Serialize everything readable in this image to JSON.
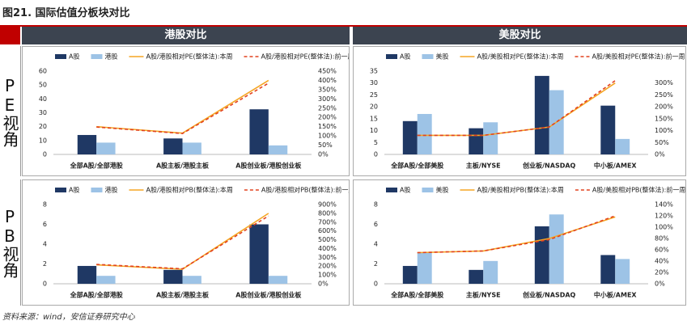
{
  "title": "图21. 国际估值分板块对比",
  "columns": [
    "港股对比",
    "美股对比"
  ],
  "rows": [
    "PE视角",
    "PB视角"
  ],
  "source": "资料来源：wind，安信证券研究中心",
  "chart_data": [
    {
      "type": "bar",
      "categories": [
        "全部A股/全部港股",
        "A股主板/港股主板",
        "A股创业板/港股创业板"
      ],
      "series": [
        {
          "name": "A股",
          "color": "#1f3864",
          "values": [
            14,
            11.5,
            32.5
          ]
        },
        {
          "name": "港股",
          "color": "#9dc3e6",
          "values": [
            8.5,
            8.5,
            6.5
          ]
        },
        {
          "name": "A股/港股相对PE(整体法):本周",
          "color": "#f5a623",
          "axis": "y2",
          "values": [
            150,
            115,
            400
          ]
        },
        {
          "name": "A股/港股相对PE(整体法):前一周",
          "color": "#e2421f",
          "axis": "y2",
          "style": "dashed",
          "values": [
            148,
            113,
            385
          ]
        }
      ],
      "ylim": [
        0,
        60
      ],
      "yticks": [
        0,
        10,
        20,
        30,
        40,
        50,
        60
      ],
      "y2lim": [
        0,
        450
      ],
      "y2ticks": [
        {
          "value": 0,
          "label": "0%"
        },
        {
          "value": 50,
          "label": "50%"
        },
        {
          "value": 100,
          "label": "100%"
        },
        {
          "value": 150,
          "label": "150%"
        },
        {
          "value": 200,
          "label": "200%"
        },
        {
          "value": 250,
          "label": "250%"
        },
        {
          "value": 300,
          "label": "300%"
        },
        {
          "value": 350,
          "label": "350%"
        },
        {
          "value": 400,
          "label": "400%"
        },
        {
          "value": 450,
          "label": "450%"
        }
      ],
      "grid": false
    },
    {
      "type": "bar",
      "categories": [
        "全部A股/全部美股",
        "主板/NYSE",
        "创业板/NASDAQ",
        "中小板/AMEX"
      ],
      "series": [
        {
          "name": "A股",
          "color": "#1f3864",
          "values": [
            14,
            11,
            33,
            20.5
          ]
        },
        {
          "name": "美股",
          "color": "#9dc3e6",
          "values": [
            17,
            13.5,
            27,
            6.5
          ]
        },
        {
          "name": "A股/美股相对PE(整体法):本周",
          "color": "#f5a623",
          "axis": "y2",
          "values": [
            80,
            80,
            115,
            300
          ]
        },
        {
          "name": "A股/美股相对PE(整体法):前一周",
          "color": "#e2421f",
          "axis": "y2",
          "style": "dashed",
          "values": [
            80,
            80,
            115,
            310
          ]
        }
      ],
      "ylim": [
        0,
        35
      ],
      "yticks": [
        0,
        5,
        10,
        15,
        20,
        25,
        30,
        35
      ],
      "y2lim": [
        0,
        350
      ],
      "y2ticks": [
        {
          "value": 0,
          "label": "0%"
        },
        {
          "value": 50,
          "label": "50%"
        },
        {
          "value": 100,
          "label": "100%"
        },
        {
          "value": 150,
          "label": "150%"
        },
        {
          "value": 200,
          "label": "200%"
        },
        {
          "value": 250,
          "label": "250%"
        },
        {
          "value": 300,
          "label": "300%"
        }
      ],
      "grid": false
    },
    {
      "type": "bar",
      "categories": [
        "全部A股/全部港股",
        "A股主板/港股主板",
        "A股创业板/港股创业板"
      ],
      "series": [
        {
          "name": "A股",
          "color": "#1f3864",
          "values": [
            1.8,
            1.4,
            6
          ]
        },
        {
          "name": "港股",
          "color": "#9dc3e6",
          "values": [
            0.8,
            0.8,
            0.8
          ]
        },
        {
          "name": "A股/港股相对PB(整体法):本周",
          "color": "#f5a623",
          "axis": "y2",
          "values": [
            215,
            165,
            800
          ]
        },
        {
          "name": "A股/港股相对PB(整体法):前一周",
          "color": "#e2421f",
          "axis": "y2",
          "style": "dashed",
          "values": [
            220,
            170,
            770
          ]
        }
      ],
      "ylim": [
        0,
        8
      ],
      "yticks": [
        0,
        2,
        4,
        6,
        8
      ],
      "y2lim": [
        0,
        900
      ],
      "y2ticks": [
        {
          "value": 0,
          "label": "0%"
        },
        {
          "value": 100,
          "label": "100%"
        },
        {
          "value": 200,
          "label": "200%"
        },
        {
          "value": 300,
          "label": "300%"
        },
        {
          "value": 400,
          "label": "400%"
        },
        {
          "value": 500,
          "label": "500%"
        },
        {
          "value": 600,
          "label": "600%"
        },
        {
          "value": 700,
          "label": "700%"
        },
        {
          "value": 800,
          "label": "800%"
        },
        {
          "value": 900,
          "label": "900%"
        }
      ],
      "grid": false
    },
    {
      "type": "bar",
      "categories": [
        "全部A股/全部美股",
        "主板/NYSE",
        "创业板/NASDAQ",
        "中小板/AMEX"
      ],
      "series": [
        {
          "name": "A股",
          "color": "#1f3864",
          "values": [
            1.8,
            1.4,
            5.8,
            2.9
          ]
        },
        {
          "name": "美股",
          "color": "#9dc3e6",
          "values": [
            3.2,
            2.3,
            7,
            2.5
          ]
        },
        {
          "name": "A股/美股相对PB(整体法):本周",
          "color": "#f5a623",
          "axis": "y2",
          "values": [
            55,
            58,
            80,
            118
          ]
        },
        {
          "name": "A股/美股相对PB(整体法):前一周",
          "color": "#e2421f",
          "axis": "y2",
          "style": "dashed",
          "values": [
            55,
            58,
            78,
            120
          ]
        }
      ],
      "ylim": [
        0,
        8
      ],
      "yticks": [
        0,
        2,
        4,
        6,
        8
      ],
      "y2lim": [
        0,
        140
      ],
      "y2ticks": [
        {
          "value": 0,
          "label": "0%"
        },
        {
          "value": 20,
          "label": "20%"
        },
        {
          "value": 40,
          "label": "40%"
        },
        {
          "value": 60,
          "label": "60%"
        },
        {
          "value": 80,
          "label": "80%"
        },
        {
          "value": 100,
          "label": "100%"
        },
        {
          "value": 120,
          "label": "120%"
        },
        {
          "value": 140,
          "label": "140%"
        }
      ],
      "grid": false
    }
  ]
}
